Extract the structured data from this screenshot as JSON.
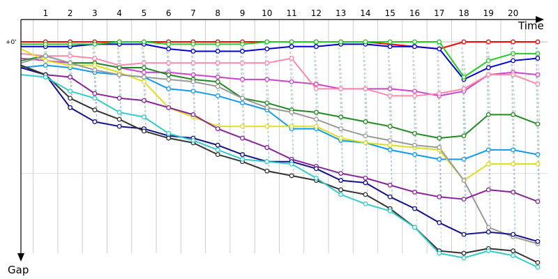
{
  "chart_data": {
    "type": "line",
    "title": "",
    "xlabel": "Time",
    "ylabel": "Gap",
    "reference_label": "+0'",
    "x": [
      0,
      1,
      2,
      3,
      4,
      5,
      6,
      7,
      8,
      9,
      10,
      11,
      12,
      13,
      14,
      15,
      16,
      17,
      18,
      19,
      20,
      21
    ],
    "x_tick_labels": [
      "1",
      "2",
      "3",
      "4",
      "5",
      "6",
      "7",
      "8",
      "9",
      "10",
      "11",
      "12",
      "13",
      "14",
      "15",
      "16",
      "17",
      "18",
      "19",
      "20"
    ],
    "xlim": [
      0,
      21.4
    ],
    "ylim": [
      -1,
      90
    ],
    "y_reference": 0,
    "grid": true,
    "legend": "none",
    "series": [
      {
        "color": "#ff0000",
        "values": [
          0,
          0,
          0,
          0,
          0,
          0,
          0,
          0,
          0,
          0,
          0,
          0,
          0,
          0,
          0,
          1,
          2,
          3,
          0,
          0,
          0,
          0
        ]
      },
      {
        "color": "#0000cc",
        "values": [
          2,
          2,
          2,
          1,
          1,
          1,
          3,
          4,
          4,
          4,
          3,
          2,
          2,
          1,
          1,
          2,
          2,
          3,
          16,
          11,
          8,
          7
        ]
      },
      {
        "color": "#22cc22",
        "values": [
          1,
          1,
          1,
          1,
          0,
          0,
          1,
          1,
          1,
          1,
          0,
          0,
          0,
          0,
          0,
          0,
          0,
          0,
          15,
          8,
          5,
          5
        ]
      },
      {
        "color": "#cc44cc",
        "values": [
          7,
          8,
          9,
          9,
          11,
          13,
          13,
          14,
          15,
          16,
          16,
          17,
          18,
          20,
          20,
          20,
          21,
          23,
          21,
          14,
          13,
          14
        ]
      },
      {
        "color": "#ff88aa",
        "values": [
          5,
          6,
          6,
          7,
          10,
          9,
          9,
          9,
          9,
          9,
          9,
          7,
          20,
          20,
          20,
          23,
          23,
          22,
          20,
          14,
          14,
          18
        ]
      },
      {
        "color": "#228822",
        "values": [
          8,
          6,
          9,
          9,
          11,
          11,
          14,
          16,
          17,
          24,
          26,
          29,
          30,
          32,
          34,
          36,
          39,
          41,
          40,
          31,
          31,
          35
        ]
      },
      {
        "color": "#1199ee",
        "values": [
          11,
          10,
          11,
          13,
          14,
          15,
          20,
          21,
          23,
          26,
          29,
          37,
          37,
          42,
          43,
          46,
          48,
          50,
          50,
          46,
          46,
          48
        ]
      },
      {
        "color": "#dddd22",
        "values": [
          3,
          8,
          10,
          10,
          13,
          17,
          28,
          32,
          36,
          36,
          36,
          36,
          36,
          41,
          43,
          44,
          45,
          46,
          59,
          52,
          52,
          52
        ]
      },
      {
        "color": "#999999",
        "values": [
          9,
          6,
          9,
          12,
          14,
          15,
          16,
          17,
          19,
          24,
          28,
          30,
          33,
          37,
          40,
          42,
          44,
          45,
          59,
          79,
          83,
          86
        ]
      },
      {
        "color": "#882299",
        "values": [
          10,
          14,
          15,
          22,
          24,
          25,
          28,
          31,
          37,
          41,
          45,
          50,
          53,
          56,
          58,
          61,
          64,
          66,
          67,
          63,
          64,
          68
        ]
      },
      {
        "color": "#111188",
        "values": [
          11,
          14,
          28,
          34,
          36,
          37,
          40,
          41,
          44,
          48,
          51,
          51,
          54,
          59,
          60,
          66,
          71,
          77,
          82,
          81,
          82,
          85
        ]
      },
      {
        "color": "#333333",
        "values": [
          10,
          14,
          24,
          29,
          33,
          38,
          41,
          43,
          48,
          51,
          55,
          57,
          59,
          63,
          65,
          71,
          79,
          89,
          90,
          88,
          89,
          94
        ]
      },
      {
        "color": "#33cccc",
        "values": [
          14,
          15,
          21,
          24,
          30,
          32,
          39,
          42,
          46,
          50,
          51,
          52,
          58,
          65,
          69,
          72,
          79,
          90,
          92,
          89,
          91,
          96
        ]
      }
    ]
  }
}
